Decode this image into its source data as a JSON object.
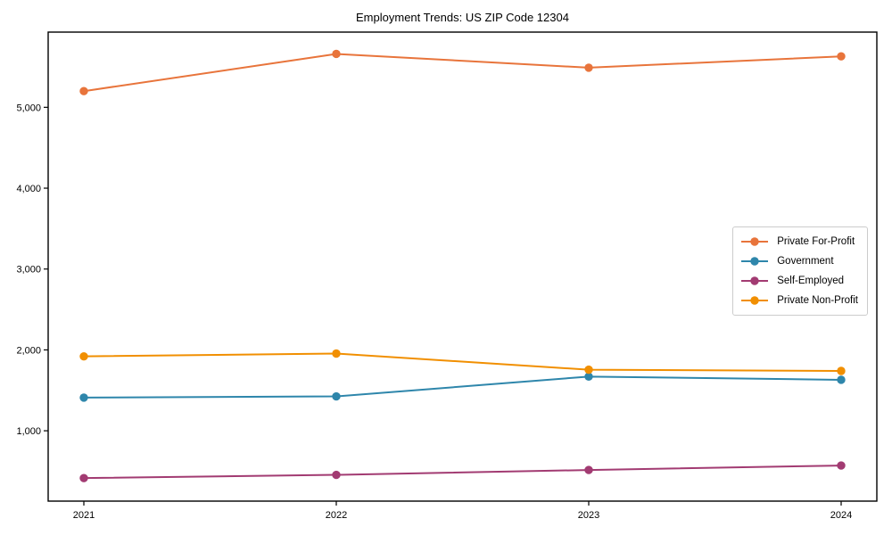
{
  "chart_data": {
    "type": "line",
    "title": "Employment Trends: US ZIP Code 12304",
    "xlabel": "",
    "ylabel": "",
    "categories": [
      "2021",
      "2022",
      "2023",
      "2024"
    ],
    "series": [
      {
        "name": "Private For-Profit",
        "color": "#E8743B",
        "values": [
          5200,
          5660,
          5490,
          5630
        ]
      },
      {
        "name": "Government",
        "color": "#2E86AB",
        "values": [
          1410,
          1425,
          1670,
          1630
        ]
      },
      {
        "name": "Self-Employed",
        "color": "#A23B72",
        "values": [
          415,
          455,
          515,
          570
        ]
      },
      {
        "name": "Private Non-Profit",
        "color": "#F18F01",
        "values": [
          1920,
          1955,
          1755,
          1740
        ]
      }
    ],
    "y_ticks": [
      1000,
      2000,
      3000,
      4000,
      5000
    ],
    "y_tick_labels": [
      "1,000",
      "2,000",
      "3,000",
      "4,000",
      "5,000"
    ],
    "ylim": [
      130,
      5930
    ],
    "grid": false,
    "legend_position": "center-right",
    "frame_color": "#000000",
    "background_color": "#ffffff"
  }
}
